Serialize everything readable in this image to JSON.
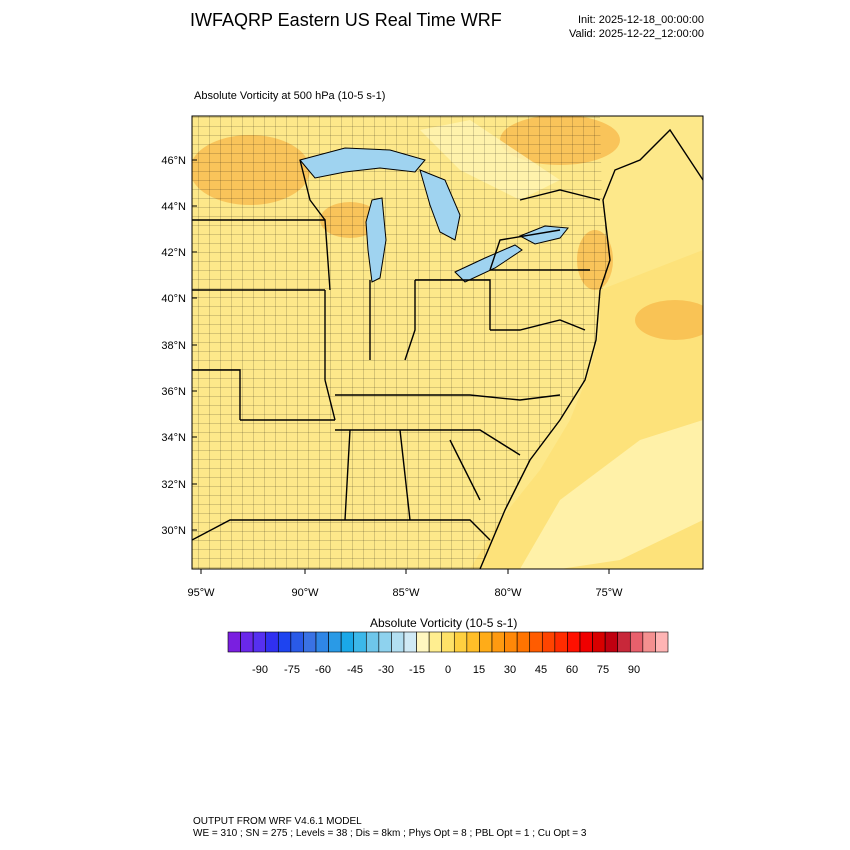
{
  "header": {
    "title": "IWFAQRP Eastern US Real Time WRF",
    "init": "Init: 2025-12-18_00:00:00",
    "valid": "Valid: 2025-12-22_12:00:00"
  },
  "map": {
    "subtitle": "Absolute Vorticity at 500 hPa   (10-5 s-1)",
    "lat_labels": [
      "46°N",
      "44°N",
      "42°N",
      "40°N",
      "38°N",
      "36°N",
      "34°N",
      "32°N",
      "30°N"
    ],
    "lon_labels": [
      "95°W",
      "90°W",
      "85°W",
      "80°W",
      "75°W"
    ],
    "colors": {
      "land_fill": "#fde88a",
      "ocean_fill": "#fde27a",
      "lake_fill": "#9fd3f0",
      "high_vorticity": "#f7b84a",
      "low_vorticity": "#fff3b0",
      "border": "#000000"
    }
  },
  "colorbar": {
    "title": "Absolute Vorticity  (10-5 s-1)",
    "labels": [
      "-90",
      "-75",
      "-60",
      "-45",
      "-30",
      "-15",
      "0",
      "15",
      "30",
      "45",
      "60",
      "75",
      "90"
    ],
    "colors": [
      "#7a1fe0",
      "#6a28ea",
      "#5630f0",
      "#3030f0",
      "#1e44f0",
      "#2a5ae8",
      "#3a72e4",
      "#2f86e6",
      "#2a9ae6",
      "#1aa8e8",
      "#3cb8ea",
      "#6ec6ea",
      "#8ed2ee",
      "#b2dff2",
      "#d0eaf6",
      "#fff7c0",
      "#ffee90",
      "#ffe268",
      "#ffd040",
      "#ffbe28",
      "#ffac18",
      "#ff9a10",
      "#ff8808",
      "#ff7400",
      "#ff5c00",
      "#ff4400",
      "#ff2c00",
      "#ff1000",
      "#f00000",
      "#d80000",
      "#c00010",
      "#c8283a",
      "#e8606c",
      "#f49090",
      "#ffb4b4"
    ]
  },
  "footer": {
    "line1": "OUTPUT FROM WRF V4.6.1 MODEL",
    "line2": "WE = 310 ; SN = 275 ; Levels = 38 ; Dis = 8km ; Phys Opt = 8 ; PBL Opt = 1 ; Cu Opt = 3"
  }
}
